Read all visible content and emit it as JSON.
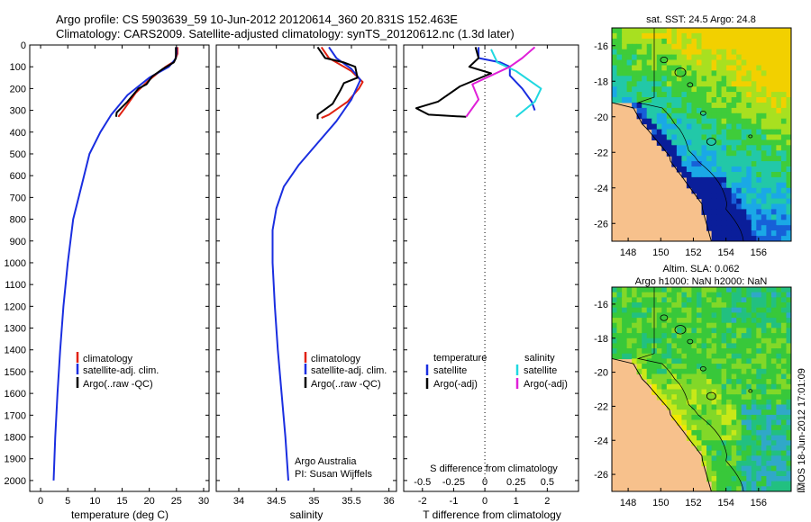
{
  "header": {
    "line1": "Argo profile: CS 5903639_59 10-Jun-2012 20120614_360 20.831S 152.463E",
    "line2": "Climatology: CARS2009. Satellite-adjusted climatology: synTS_20120612.nc (1.3d later)"
  },
  "colors": {
    "climatology": "#e02010",
    "satellite": "#1a2ee0",
    "argo": "#000000",
    "salt_sat": "#20d8e0",
    "salt_argo": "#e020d8",
    "land": "#f7c18c"
  },
  "chart_data": [
    {
      "id": "temperature",
      "type": "line",
      "xlabel": "temperature (deg C)",
      "ylabel": "",
      "xlim": [
        -2,
        31
      ],
      "ylim": [
        2050,
        0
      ],
      "xticks": [
        "0",
        "5",
        "10",
        "15",
        "20",
        "25",
        "30"
      ],
      "yticks": [
        "0",
        "100",
        "200",
        "300",
        "400",
        "500",
        "600",
        "700",
        "800",
        "900",
        "1000",
        "1100",
        "1200",
        "1300",
        "1400",
        "1500",
        "1600",
        "1700",
        "1800",
        "1900",
        "2000"
      ],
      "legend": {
        "position": "lower-left",
        "entries": [
          "climatology",
          "satellite-adj. clim.",
          "Argo(..raw -QC)"
        ]
      },
      "series": [
        {
          "name": "climatology",
          "points": [
            [
              25.2,
              10
            ],
            [
              25.2,
              40
            ],
            [
              24.6,
              75
            ],
            [
              23,
              100
            ],
            [
              20,
              160
            ],
            [
              17.5,
              220
            ],
            [
              15.5,
              290
            ],
            [
              14.3,
              330
            ]
          ]
        },
        {
          "name": "satellite-adj. clim.",
          "points": [
            [
              25,
              10
            ],
            [
              25,
              40
            ],
            [
              24.8,
              65
            ],
            [
              23.6,
              100
            ],
            [
              20,
              150
            ],
            [
              16,
              230
            ],
            [
              13,
              320
            ],
            [
              11,
              400
            ],
            [
              9,
              500
            ],
            [
              7.5,
              650
            ],
            [
              6,
              800
            ],
            [
              5,
              1000
            ],
            [
              4.2,
              1200
            ],
            [
              3.6,
              1400
            ],
            [
              3.1,
              1600
            ],
            [
              2.7,
              1800
            ],
            [
              2.4,
              2000
            ]
          ]
        },
        {
          "name": "Argo(..raw -QC)",
          "points": [
            [
              24.9,
              10
            ],
            [
              24.9,
              60
            ],
            [
              24.5,
              80
            ],
            [
              22.5,
              110
            ],
            [
              20.5,
              145
            ],
            [
              19.5,
              180
            ],
            [
              18,
              200
            ],
            [
              16,
              260
            ],
            [
              14,
              310
            ],
            [
              13.9,
              330
            ]
          ]
        }
      ]
    },
    {
      "id": "salinity",
      "type": "line",
      "xlabel": "salinity",
      "xlim": [
        33.7,
        36.1
      ],
      "ylim": [
        2050,
        0
      ],
      "xticks": [
        "34",
        "34.5",
        "35",
        "35.5",
        "36"
      ],
      "legend": {
        "position": "lower-left",
        "entries": [
          "climatology",
          "satellite-adj. clim.",
          "Argo(..raw -QC)"
        ]
      },
      "annotations": [
        "Argo Australia",
        "PI: Susan Wijffels"
      ],
      "series": [
        {
          "name": "climatology",
          "points": [
            [
              35.1,
              10
            ],
            [
              35.2,
              60
            ],
            [
              35.5,
              120
            ],
            [
              35.65,
              170
            ],
            [
              35.6,
              200
            ],
            [
              35.45,
              260
            ],
            [
              35.2,
              320
            ],
            [
              35.1,
              335
            ]
          ]
        },
        {
          "name": "satellite-adj. clim.",
          "points": [
            [
              35.2,
              10
            ],
            [
              35.3,
              60
            ],
            [
              35.5,
              110
            ],
            [
              35.62,
              160
            ],
            [
              35.5,
              250
            ],
            [
              35.3,
              350
            ],
            [
              35.05,
              450
            ],
            [
              34.8,
              550
            ],
            [
              34.6,
              650
            ],
            [
              34.5,
              750
            ],
            [
              34.45,
              850
            ],
            [
              34.45,
              1000
            ],
            [
              34.48,
              1200
            ],
            [
              34.52,
              1400
            ],
            [
              34.57,
              1600
            ],
            [
              34.62,
              1800
            ],
            [
              34.66,
              2000
            ]
          ]
        },
        {
          "name": "Argo(..raw -QC)",
          "points": [
            [
              35.05,
              10
            ],
            [
              35.15,
              60
            ],
            [
              35.4,
              80
            ],
            [
              35.55,
              100
            ],
            [
              35.58,
              150
            ],
            [
              35.4,
              175
            ],
            [
              35.35,
              210
            ],
            [
              35.25,
              270
            ],
            [
              35.05,
              320
            ],
            [
              35.05,
              340
            ]
          ]
        }
      ]
    },
    {
      "id": "differences",
      "type": "line",
      "xlabel": "T difference from climatology",
      "x2label": "S difference from climatology",
      "xlim": [
        -2.6,
        3.0
      ],
      "ylim": [
        2050,
        0
      ],
      "xticks": [
        "-2",
        "-1",
        "0",
        "1",
        "2"
      ],
      "x2ticks": [
        "-0.5",
        "-0.25",
        "0",
        "0.25",
        "0.5"
      ],
      "legend_temperature": {
        "title": "temperature",
        "entries": [
          "satellite",
          "Argo(-adj)"
        ]
      },
      "legend_salinity": {
        "title": "salinity",
        "entries": [
          "satellite",
          "Argo(-adj)"
        ]
      },
      "series": [
        {
          "name": "T satellite",
          "points": [
            [
              -0.2,
              10
            ],
            [
              -0.2,
              60
            ],
            [
              0.5,
              80
            ],
            [
              0.8,
              100
            ],
            [
              0.8,
              140
            ],
            [
              1.2,
              200
            ],
            [
              1.5,
              260
            ],
            [
              1.6,
              300
            ]
          ]
        },
        {
          "name": "T Argo(-adj)",
          "points": [
            [
              -0.3,
              10
            ],
            [
              -0.2,
              60
            ],
            [
              -0.5,
              100
            ],
            [
              0.2,
              130
            ],
            [
              -0.8,
              190
            ],
            [
              -1.5,
              260
            ],
            [
              -2.2,
              290
            ],
            [
              -1.8,
              320
            ],
            [
              -0.6,
              330
            ]
          ]
        },
        {
          "name": "S satellite",
          "points": [
            [
              0.05,
              20
            ],
            [
              0.1,
              80
            ],
            [
              0.25,
              120
            ],
            [
              0.45,
              200
            ],
            [
              0.4,
              260
            ],
            [
              0.25,
              330
            ]
          ]
        },
        {
          "name": "S Argo(-adj)",
          "points": [
            [
              0.4,
              10
            ],
            [
              0.3,
              60
            ],
            [
              0.2,
              100
            ],
            [
              -0.1,
              180
            ],
            [
              -0.05,
              250
            ],
            [
              -0.15,
              330
            ]
          ]
        }
      ]
    },
    {
      "id": "sst_map",
      "type": "heatmap",
      "title": "sat. SST: 24.5 Argo: 24.8",
      "xlim": [
        147,
        158
      ],
      "ylim": [
        -27,
        -15
      ],
      "xticks": [
        "148",
        "150",
        "152",
        "154",
        "156"
      ],
      "yticks": [
        "-16",
        "-18",
        "-20",
        "-22",
        "-24",
        "-26"
      ]
    },
    {
      "id": "sla_map",
      "type": "heatmap",
      "title": "Altim. SLA: 0.062",
      "subtitle": "Argo h1000: NaN h2000: NaN",
      "xlim": [
        147,
        158
      ],
      "ylim": [
        -27,
        -15
      ],
      "xticks": [
        "148",
        "150",
        "152",
        "154",
        "156"
      ],
      "yticks": [
        "-16",
        "-18",
        "-20",
        "-22",
        "-24",
        "-26"
      ]
    }
  ],
  "stamp": "IMOS 18-Jun-2012 17:01:09"
}
